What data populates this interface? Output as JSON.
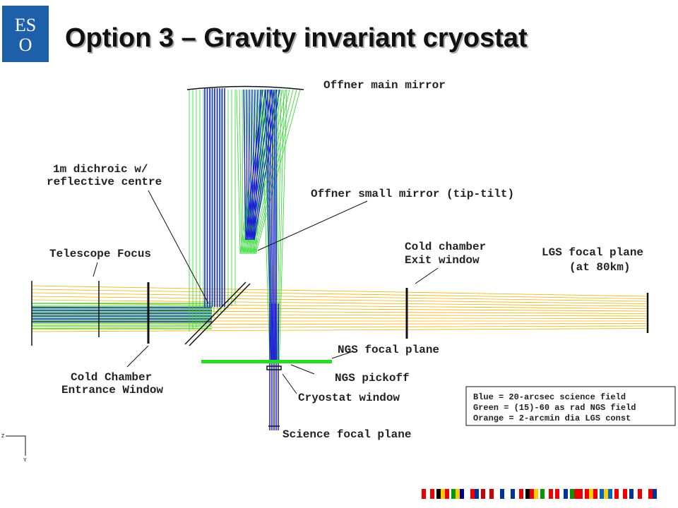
{
  "logo": {
    "top": "ES",
    "bottom": "O"
  },
  "title": "Option 3 – Gravity invariant cryostat",
  "labels": {
    "offner_main": "Offner main mirror",
    "dichroic_1": "1m dichroic w/",
    "dichroic_2": "reflective centre",
    "offner_small": "Offner small mirror (tip-tilt)",
    "telescope_focus": "Telescope Focus",
    "cold_exit_1": "Cold chamber",
    "cold_exit_2": "Exit window",
    "lgs_1": "LGS focal plane",
    "lgs_2": "(at 80km)",
    "ngs_focal": "NGS focal plane",
    "ngs_pickoff": "NGS pickoff",
    "cold_entrance_1": "Cold Chamber",
    "cold_entrance_2": "Entrance Window",
    "cryostat_window": "Cryostat window",
    "science_focal": "Science focal plane"
  },
  "legend": [
    "Blue = 20-arcsec science field",
    "Green = (15)-60 as rad NGS field",
    "Orange = 2-arcmin dia LGS const"
  ],
  "axes": {
    "z": "Z",
    "y": "Y"
  }
}
